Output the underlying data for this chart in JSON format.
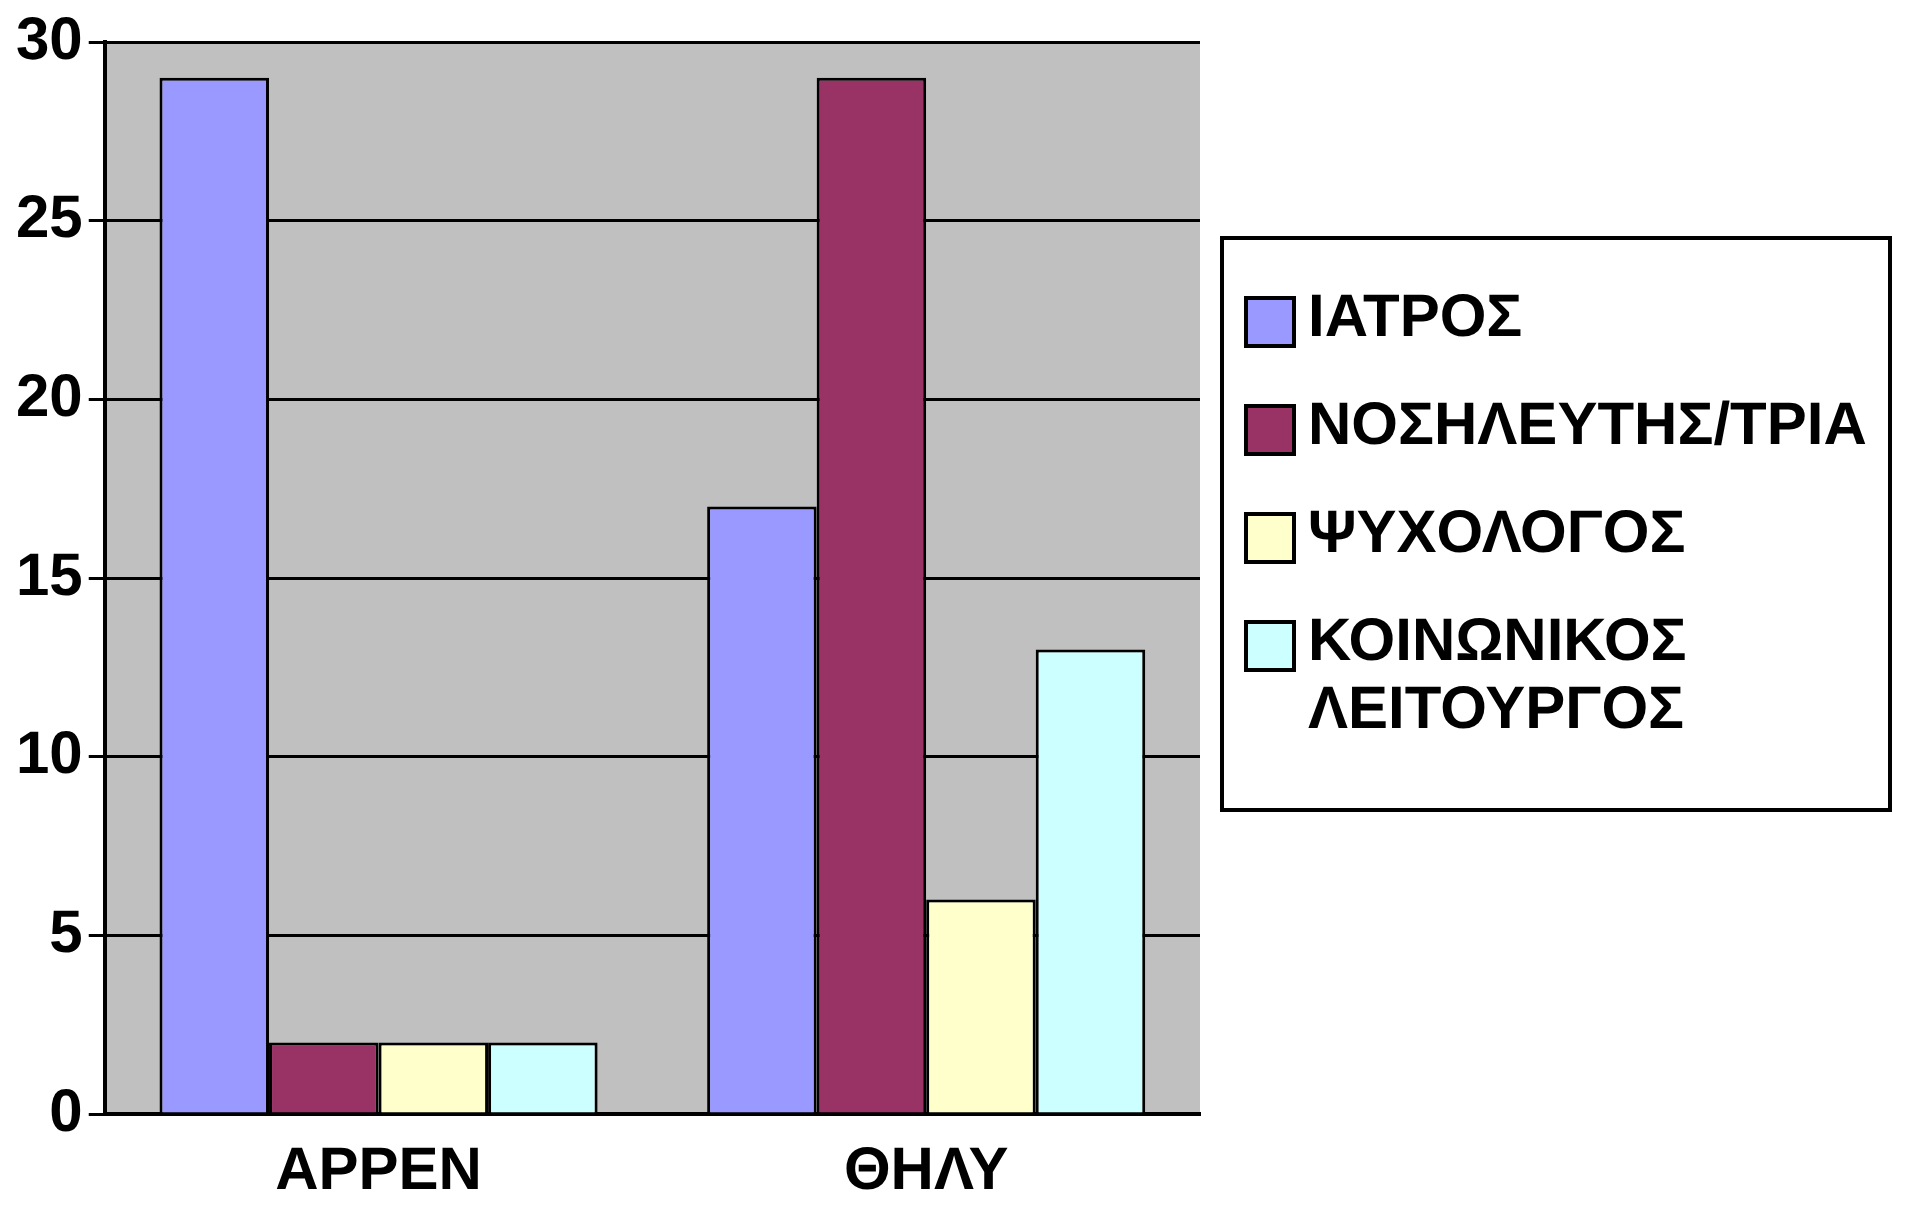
{
  "chart_data": {
    "type": "bar",
    "categories": [
      "ΑΡΡΕΝ",
      "ΘΗΛΥ"
    ],
    "series": [
      {
        "name": "ΙΑΤΡΟΣ",
        "color": "#9999ff",
        "values": [
          29,
          17
        ]
      },
      {
        "name": "ΝΟΣΗΛΕΥΤΗΣ/ΤΡΙΑ",
        "color": "#993366",
        "values": [
          2,
          29
        ]
      },
      {
        "name": "ΨΥΧΟΛΟΓΟΣ",
        "color": "#ffffcc",
        "values": [
          2,
          6
        ]
      },
      {
        "name": "ΚΟΙΝΩΝΙΚΟΣ ΛΕΙΤΟΥΡΓΟΣ",
        "color": "#ccffff",
        "values": [
          2,
          13
        ]
      }
    ],
    "ylim": [
      0,
      30
    ],
    "yticks": [
      0,
      5,
      10,
      15,
      20,
      25,
      30
    ],
    "grid": "y",
    "legend": "right"
  }
}
